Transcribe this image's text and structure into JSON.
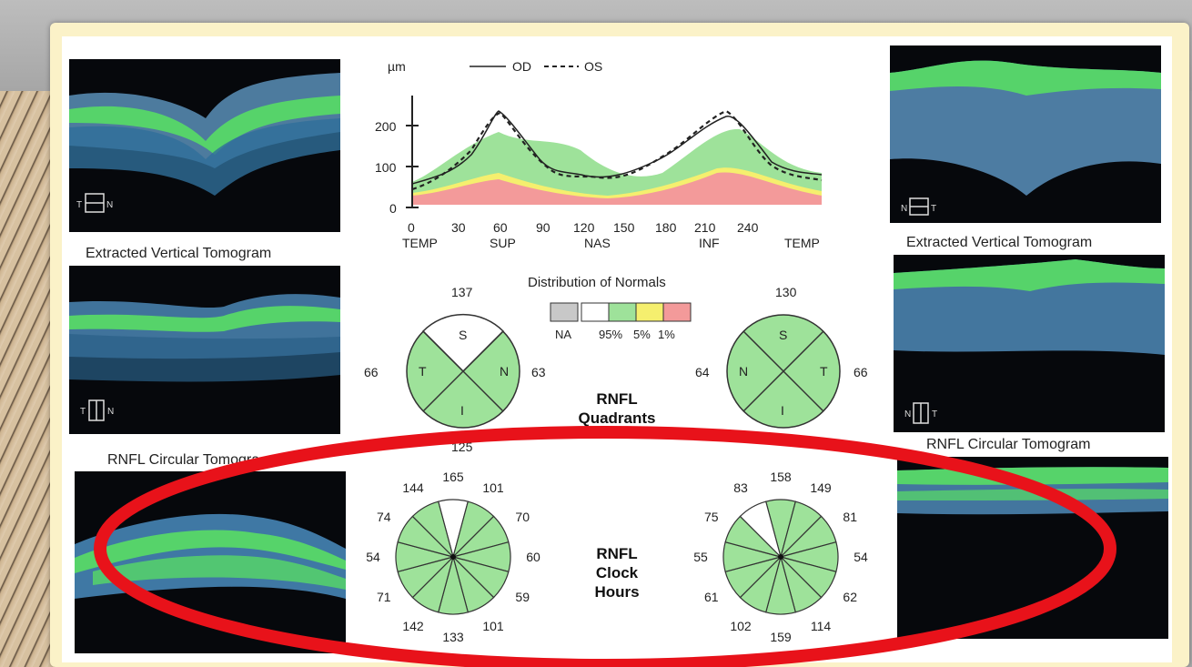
{
  "graph": {
    "y_unit": "µm",
    "legend_od": "OD",
    "legend_os": "OS",
    "y_ticks": [
      "200",
      "100",
      "0"
    ],
    "x_ticks": [
      "0",
      "30",
      "60",
      "90",
      "120",
      "150",
      "180",
      "210",
      "240"
    ],
    "x_regions": [
      "TEMP",
      "SUP",
      "NAS",
      "INF",
      "TEMP"
    ]
  },
  "captions": {
    "left_vertical": "Extracted Vertical Tomogram",
    "left_circular": "RNFL Circular Tomogra",
    "right_vertical": "Extracted Vertical Tomogram",
    "right_circular": "RNFL Circular Tomogram"
  },
  "tomogram_markers": {
    "left_top": [
      "T",
      "N"
    ],
    "left_mid": [
      "T",
      "N"
    ],
    "right_top": [
      "N",
      "T"
    ],
    "right_mid": [
      "N",
      "T"
    ]
  },
  "distribution": {
    "title": "Distribution of Normals",
    "labels": [
      "NA",
      "95%",
      "5%",
      "1%"
    ],
    "colors": [
      "#c8c8c8",
      "#ffffff",
      "#9ee29a",
      "#f5ef6e",
      "#f39a9a"
    ]
  },
  "quadrants": {
    "title_line1": "RNFL",
    "title_line2": "Quadrants",
    "od": {
      "S": "137",
      "T": "66",
      "N": "63",
      "I": "125"
    },
    "os": {
      "S": "130",
      "N": "64",
      "T": "66"
    },
    "letters": [
      "S",
      "T",
      "N",
      "I"
    ]
  },
  "clock_hours": {
    "title_line1": "RNFL",
    "title_line2": "Clock",
    "title_line3": "Hours",
    "od": [
      "165",
      "101",
      "70",
      "60",
      "59",
      "101",
      "133",
      "142",
      "71",
      "54",
      "74",
      "144"
    ],
    "os": [
      "158",
      "149",
      "81",
      "54",
      "62",
      "114",
      "159",
      "102",
      "61",
      "55",
      "75",
      "83"
    ]
  },
  "colors": {
    "normal_green": "#9ee29a",
    "highlight_red": "#e8121a",
    "od_line": "#222222"
  }
}
